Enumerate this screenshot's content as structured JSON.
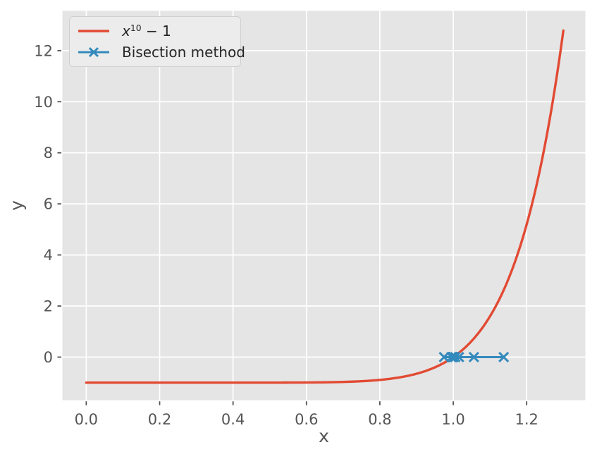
{
  "figure": {
    "background": "#ffffff",
    "axes_background": "#e5e5e5",
    "grid_color": "#ffffff",
    "tick_color": "#555555",
    "label_color": "#555555",
    "legend_text_color": "#262626",
    "legend_face_color": "#ececec",
    "legend_edge_color": "#cfcfcf"
  },
  "chart_data": {
    "type": "line",
    "title": "",
    "xlabel": "x",
    "ylabel": "y",
    "xlim": [
      -0.065,
      1.36
    ],
    "ylim": [
      -1.69,
      13.56
    ],
    "xtick_values": [
      0.0,
      0.2,
      0.4,
      0.6,
      0.8,
      1.0,
      1.2
    ],
    "xtick_labels": [
      "0.0",
      "0.2",
      "0.4",
      "0.6",
      "0.8",
      "1.0",
      "1.2"
    ],
    "ytick_values": [
      0,
      2,
      4,
      6,
      8,
      10,
      12
    ],
    "ytick_labels": [
      "0",
      "2",
      "4",
      "6",
      "8",
      "10",
      "12"
    ],
    "grid": true,
    "legend_position": "upper left",
    "series": [
      {
        "name": "x^10 - 1",
        "kind": "function-curve",
        "color": "#e24a33",
        "linewidth": 3.4,
        "function": "power",
        "exponent": 10,
        "offset": -1,
        "x_start": 0.0,
        "x_end": 1.3,
        "n_samples": 400
      },
      {
        "name": "Bisection method",
        "kind": "line-with-x-markers",
        "color": "#348abd",
        "linewidth": 3.0,
        "marker": "x",
        "x_values": [
          0.975,
          1.1375,
          1.05625,
          1.015625,
          0.9953125,
          1.00546875,
          1.000390625,
          0.9978515625,
          0.99912109375,
          0.999755859375
        ],
        "y_values": [
          0,
          0,
          0,
          0,
          0,
          0,
          0,
          0,
          0,
          0
        ]
      }
    ]
  },
  "legend": {
    "entries": [
      {
        "label_var": "x",
        "label_sup": "10",
        "label_rest": " − 1",
        "color": "#e24a33",
        "marker": "none"
      },
      {
        "label": "Bisection method",
        "color": "#348abd",
        "marker": "x"
      }
    ]
  }
}
